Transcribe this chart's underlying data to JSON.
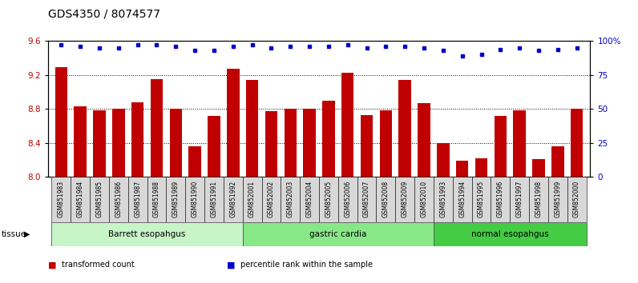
{
  "title": "GDS4350 / 8074577",
  "samples": [
    "GSM851983",
    "GSM851984",
    "GSM851985",
    "GSM851986",
    "GSM851987",
    "GSM851988",
    "GSM851989",
    "GSM851990",
    "GSM851991",
    "GSM851992",
    "GSM852001",
    "GSM852002",
    "GSM852003",
    "GSM852004",
    "GSM852005",
    "GSM852006",
    "GSM852007",
    "GSM852008",
    "GSM852009",
    "GSM852010",
    "GSM851993",
    "GSM851994",
    "GSM851995",
    "GSM851996",
    "GSM851997",
    "GSM851998",
    "GSM851999",
    "GSM852000"
  ],
  "bar_values": [
    9.29,
    8.83,
    8.78,
    8.8,
    8.88,
    9.15,
    8.8,
    8.36,
    8.72,
    9.27,
    9.14,
    8.77,
    8.8,
    8.8,
    8.9,
    9.23,
    8.73,
    8.78,
    9.14,
    8.87,
    8.4,
    8.19,
    8.22,
    8.72,
    8.78,
    8.21,
    8.36,
    8.8
  ],
  "percentile_values": [
    97,
    96,
    95,
    95,
    97,
    97,
    96,
    93,
    93,
    96,
    97,
    95,
    96,
    96,
    96,
    97,
    95,
    96,
    96,
    95,
    93,
    89,
    90,
    94,
    95,
    93,
    94,
    95
  ],
  "groups": [
    {
      "label": "Barrett esopahgus",
      "start": 0,
      "end": 9,
      "color": "#c8f5c8"
    },
    {
      "label": "gastric cardia",
      "start": 10,
      "end": 19,
      "color": "#88e888"
    },
    {
      "label": "normal esopahgus",
      "start": 20,
      "end": 27,
      "color": "#44cc44"
    }
  ],
  "bar_color": "#c00000",
  "dot_color": "#0000cc",
  "ylim_left": [
    8.0,
    9.6
  ],
  "ylim_right": [
    0,
    100
  ],
  "yticks_left": [
    8.0,
    8.4,
    8.8,
    9.2,
    9.6
  ],
  "yticks_right": [
    0,
    25,
    50,
    75,
    100
  ],
  "ytick_labels_right": [
    "0",
    "25",
    "50",
    "75",
    "100%"
  ],
  "grid_values": [
    8.4,
    8.8,
    9.2
  ],
  "title_fontsize": 10,
  "legend_items": [
    {
      "color": "#c00000",
      "label": "transformed count"
    },
    {
      "color": "#0000cc",
      "label": "percentile rank within the sample"
    }
  ],
  "tissue_label": "tissue",
  "xtick_bg": "#d8d8d8",
  "background_color": "#ffffff"
}
